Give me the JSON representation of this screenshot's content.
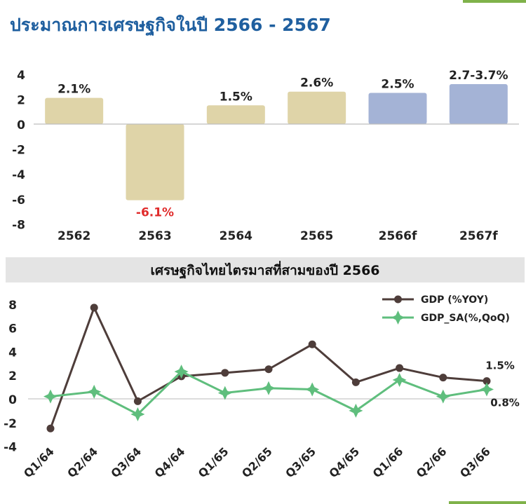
{
  "page": {
    "title": "ประมาณการเศรษฐกิจในปี 2566 - 2567"
  },
  "chart_data": [
    {
      "type": "bar",
      "title": "",
      "categories": [
        "2562",
        "2563",
        "2564",
        "2565",
        "2566f",
        "2567f"
      ],
      "values": [
        2.1,
        -6.1,
        1.5,
        2.6,
        2.5,
        3.2
      ],
      "data_labels": [
        "2.1%",
        "-6.1%",
        "1.5%",
        "2.6%",
        "2.5%",
        "2.7-3.7%"
      ],
      "ylim": [
        -8,
        4
      ],
      "yticks": [
        "4",
        "2",
        "0",
        "-2",
        "-4",
        "-6",
        "-8"
      ],
      "grid": false,
      "colors": {
        "actual": "#dfd4a8",
        "forecast": "#a4b3d6",
        "negative_label": "#e02b2b"
      }
    },
    {
      "type": "line",
      "title": "เศรษฐกิจไทยไตรมาสที่สามของปี 2566",
      "categories": [
        "Q1/64",
        "Q2/64",
        "Q3/64",
        "Q4/64",
        "Q1/65",
        "Q2/65",
        "Q3/65",
        "Q4/65",
        "Q1/66",
        "Q2/66",
        "Q3/66"
      ],
      "series": [
        {
          "name": "GDP (%YOY)",
          "values": [
            -2.5,
            7.7,
            -0.2,
            1.9,
            2.2,
            2.5,
            4.6,
            1.4,
            2.6,
            1.8,
            1.5
          ],
          "color": "#4e3d3a",
          "marker": "circle"
        },
        {
          "name": "GDP_SA(%,QoQ)",
          "values": [
            0.2,
            0.6,
            -1.3,
            2.3,
            0.5,
            0.9,
            0.8,
            -1.0,
            1.6,
            0.2,
            0.8
          ],
          "color": "#5fbe7d",
          "marker": "star"
        }
      ],
      "end_labels": [
        "1.5%",
        "0.8%"
      ],
      "ylim": [
        -4,
        8
      ],
      "yticks": [
        "8",
        "6",
        "4",
        "2",
        "0",
        "-2",
        "-4"
      ],
      "legend_position": "top-right",
      "grid": false,
      "title_band_color": "#e4e4e4"
    }
  ]
}
